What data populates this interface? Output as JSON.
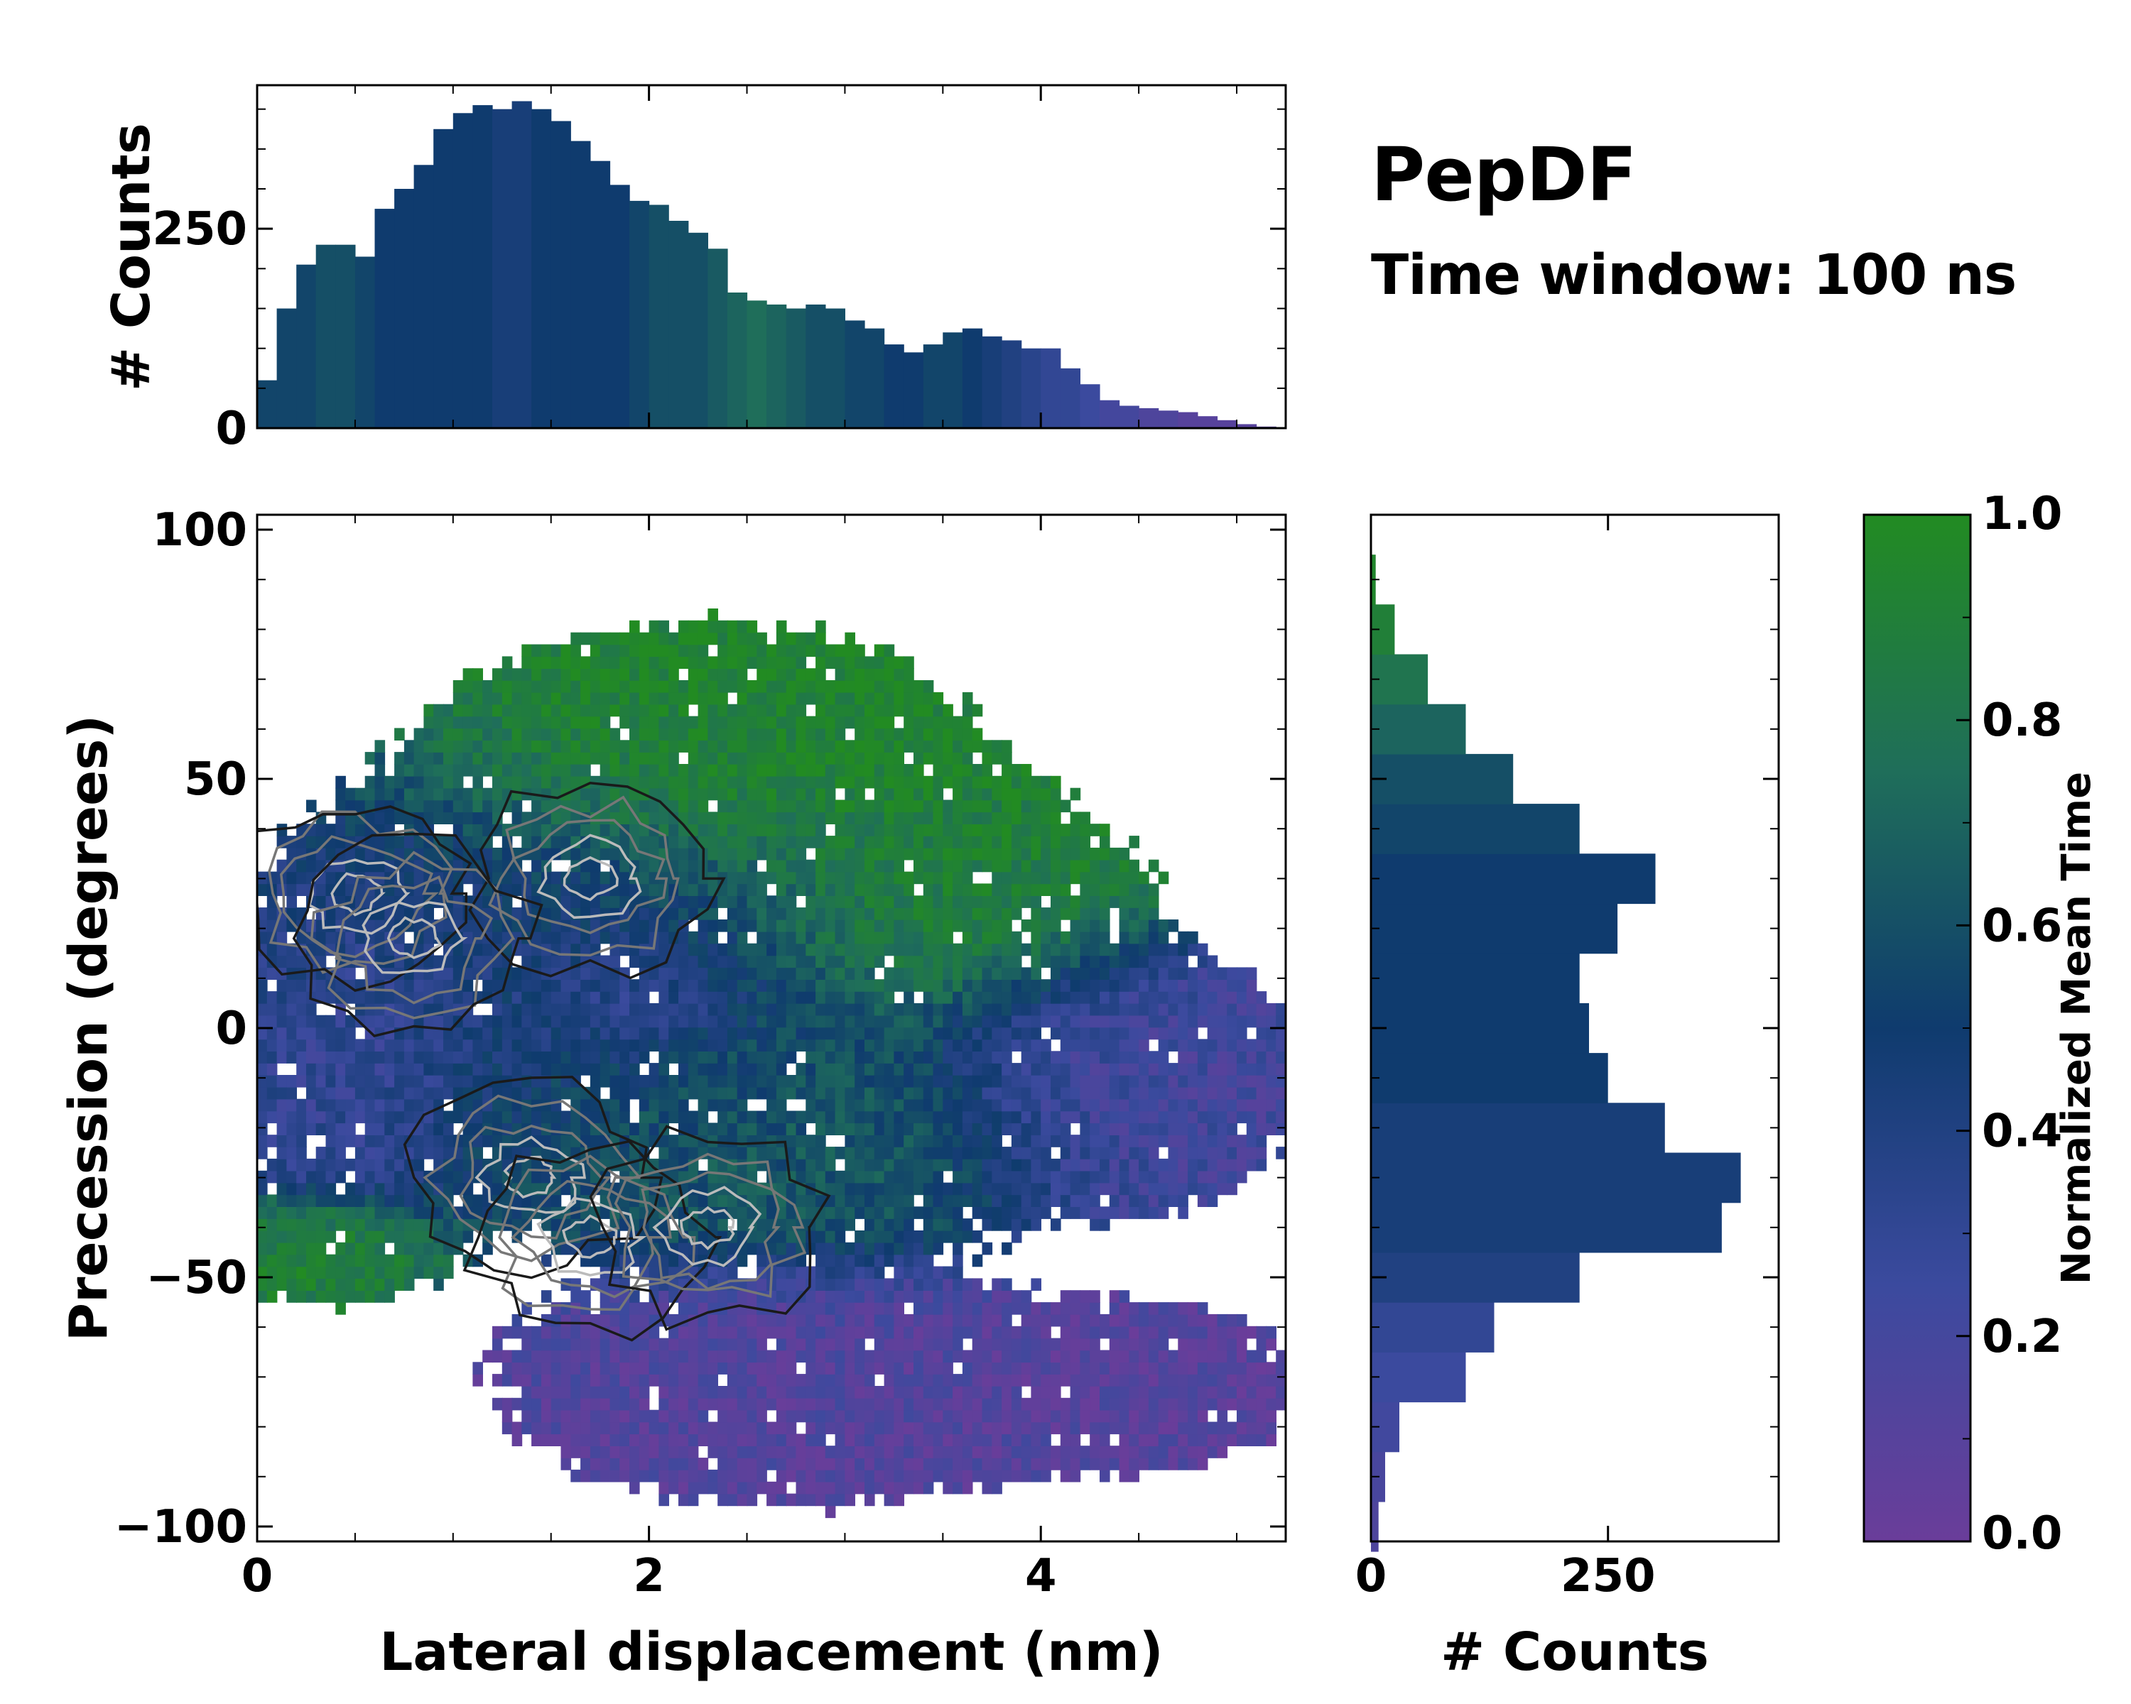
{
  "figure": {
    "title": "PepDF",
    "subtitle": "Time window: 100 ns",
    "colors": {
      "palette": [
        "#6a3d9a",
        "#3b4a9e",
        "#0f3b6e",
        "#1f6e5a",
        "#228b22"
      ],
      "frame": "#000000",
      "contour_dark": "#1a1a1a",
      "contour_light": "#bbbbbb"
    }
  },
  "chart_data": [
    {
      "id": "top-histogram",
      "type": "bar",
      "title": "",
      "xlabel": "",
      "ylabel": "# Counts",
      "xlim": [
        0,
        5.25
      ],
      "ylim": [
        0,
        430
      ],
      "yticks": [
        0,
        250
      ],
      "x": [
        0.05,
        0.15,
        0.25,
        0.35,
        0.45,
        0.55,
        0.65,
        0.75,
        0.85,
        0.95,
        1.05,
        1.15,
        1.25,
        1.35,
        1.45,
        1.55,
        1.65,
        1.75,
        1.85,
        1.95,
        2.05,
        2.15,
        2.25,
        2.35,
        2.45,
        2.55,
        2.65,
        2.75,
        2.85,
        2.95,
        3.05,
        3.15,
        3.25,
        3.35,
        3.45,
        3.55,
        3.65,
        3.75,
        3.85,
        3.95,
        4.05,
        4.15,
        4.25,
        4.35,
        4.45,
        4.55,
        4.65,
        4.75,
        4.85,
        4.95,
        5.05,
        5.15
      ],
      "values": [
        60,
        150,
        205,
        230,
        230,
        215,
        275,
        300,
        330,
        375,
        395,
        405,
        400,
        410,
        400,
        385,
        360,
        335,
        305,
        285,
        280,
        260,
        245,
        225,
        170,
        160,
        155,
        150,
        155,
        150,
        135,
        125,
        105,
        95,
        105,
        120,
        125,
        115,
        110,
        100,
        100,
        75,
        55,
        35,
        28,
        25,
        22,
        20,
        15,
        10,
        5,
        2
      ],
      "color_values": [
        0.55,
        0.55,
        0.55,
        0.6,
        0.6,
        0.55,
        0.5,
        0.5,
        0.5,
        0.5,
        0.5,
        0.5,
        0.45,
        0.45,
        0.5,
        0.5,
        0.5,
        0.5,
        0.5,
        0.55,
        0.6,
        0.6,
        0.6,
        0.65,
        0.7,
        0.75,
        0.7,
        0.65,
        0.6,
        0.6,
        0.55,
        0.55,
        0.5,
        0.5,
        0.55,
        0.55,
        0.5,
        0.45,
        0.4,
        0.35,
        0.3,
        0.3,
        0.25,
        0.2,
        0.2,
        0.15,
        0.15,
        0.1,
        0.1,
        0.1,
        0.1,
        0.1
      ]
    },
    {
      "id": "main-heatmap",
      "type": "heatmap",
      "title": "",
      "xlabel": "Lateral displacement (nm)",
      "ylabel": "Precession (degrees)",
      "xlim": [
        0,
        5.25
      ],
      "ylim": [
        -103,
        103
      ],
      "xticks": [
        0,
        2,
        4
      ],
      "yticks": [
        -100,
        -50,
        0,
        50,
        100
      ],
      "regions": [
        {
          "label": "upper-green",
          "x": 2.3,
          "y": 55,
          "rx": 1.3,
          "ry": 25,
          "value": 0.95
        },
        {
          "label": "right-green",
          "x": 3.5,
          "y": 25,
          "rx": 1.0,
          "ry": 22,
          "value": 0.9
        },
        {
          "label": "core-blue",
          "x": 1.5,
          "y": 10,
          "rx": 1.6,
          "ry": 40,
          "value": 0.45
        },
        {
          "label": "left-purple",
          "x": 0.5,
          "y": -5,
          "rx": 0.6,
          "ry": 25,
          "value": 0.25
        },
        {
          "label": "lower-mixed",
          "x": 2.6,
          "y": -20,
          "rx": 1.4,
          "ry": 25,
          "value": 0.65
        },
        {
          "label": "left-green",
          "x": 0.3,
          "y": -45,
          "rx": 0.6,
          "ry": 10,
          "value": 0.9
        },
        {
          "label": "right-purple",
          "x": 4.4,
          "y": -10,
          "rx": 0.9,
          "ry": 25,
          "value": 0.2
        },
        {
          "label": "bottom-purple",
          "x": 2.8,
          "y": -72,
          "rx": 1.5,
          "ry": 22,
          "value": 0.12
        },
        {
          "label": "bottom-right-purple",
          "x": 4.5,
          "y": -72,
          "rx": 0.8,
          "ry": 15,
          "value": 0.1
        },
        {
          "label": "middle-purple",
          "x": 1.9,
          "y": 5,
          "rx": 0.5,
          "ry": 10,
          "value": 0.25
        }
      ],
      "contour_peaks": [
        {
          "x": 1.4,
          "y": -30,
          "label": "peak-1"
        },
        {
          "x": 1.7,
          "y": -42,
          "label": "peak-2"
        },
        {
          "x": 2.3,
          "y": -40,
          "label": "peak-3"
        },
        {
          "x": 0.5,
          "y": 27,
          "label": "peak-4"
        },
        {
          "x": 1.7,
          "y": 30,
          "label": "peak-5"
        },
        {
          "x": 0.8,
          "y": 18,
          "label": "peak-6"
        }
      ]
    },
    {
      "id": "right-histogram",
      "type": "bar",
      "orientation": "horizontal",
      "title": "",
      "xlabel": "# Counts",
      "ylabel": "",
      "xlim": [
        0,
        430
      ],
      "ylim": [
        -103,
        103
      ],
      "xticks": [
        0,
        250
      ],
      "y": [
        -100,
        -90,
        -80,
        -70,
        -60,
        -50,
        -40,
        -30,
        -20,
        -10,
        0,
        10,
        20,
        30,
        40,
        50,
        60,
        70,
        80,
        90
      ],
      "values": [
        8,
        15,
        30,
        100,
        130,
        220,
        370,
        390,
        310,
        250,
        230,
        220,
        260,
        300,
        220,
        150,
        100,
        60,
        25,
        5
      ],
      "color_values": [
        0.15,
        0.18,
        0.22,
        0.25,
        0.3,
        0.4,
        0.45,
        0.45,
        0.45,
        0.5,
        0.5,
        0.5,
        0.5,
        0.5,
        0.55,
        0.6,
        0.7,
        0.8,
        0.9,
        0.95
      ]
    },
    {
      "id": "colorbar",
      "type": "heatmap",
      "title": "",
      "ylabel": "Normalized Mean Time",
      "ylim": [
        0,
        1
      ],
      "ticks": [
        "0.0",
        "0.2",
        "0.4",
        "0.6",
        "0.8",
        "1.0"
      ]
    }
  ]
}
